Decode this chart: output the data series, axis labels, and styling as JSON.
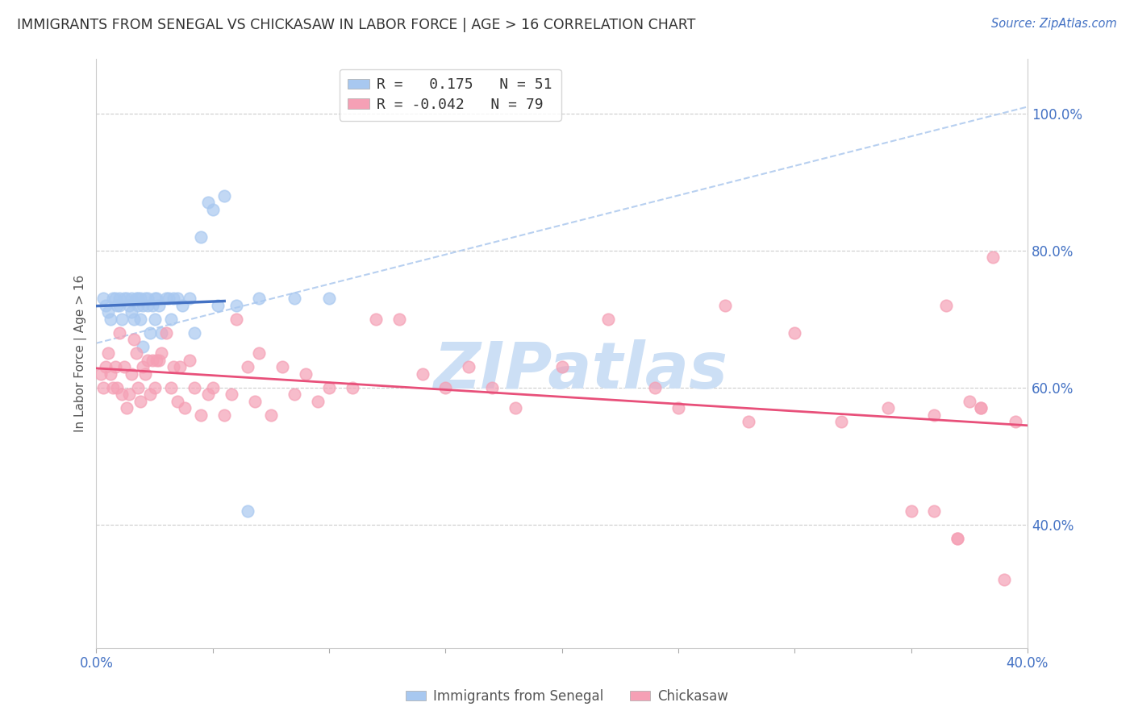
{
  "title": "IMMIGRANTS FROM SENEGAL VS CHICKASAW IN LABOR FORCE | AGE > 16 CORRELATION CHART",
  "source": "Source: ZipAtlas.com",
  "ylabel": "In Labor Force | Age > 16",
  "xlim": [
    0.0,
    0.4
  ],
  "ylim": [
    0.22,
    1.08
  ],
  "right_yticks": [
    1.0,
    0.8,
    0.6,
    0.4
  ],
  "right_ytick_labels": [
    "100.0%",
    "80.0%",
    "60.0%",
    "40.0%"
  ],
  "xtick_positions": [
    0.0,
    0.05,
    0.1,
    0.15,
    0.2,
    0.25,
    0.3,
    0.35,
    0.4
  ],
  "xtick_labels_visible": {
    "0.0": "0.0%",
    "0.40": "40.0%"
  },
  "R_senegal": 0.175,
  "N_senegal": 51,
  "R_chickasaw": -0.042,
  "N_chickasaw": 79,
  "senegal_color": "#a8c8f0",
  "chickasaw_color": "#f5a0b5",
  "senegal_line_color": "#4472c4",
  "chickasaw_line_color": "#e8507a",
  "dashed_line_color": "#b8d0f0",
  "watermark": "ZIPatlas",
  "watermark_color": "#ccdff5",
  "senegal_x": [
    0.003,
    0.004,
    0.005,
    0.006,
    0.007,
    0.008,
    0.009,
    0.01,
    0.01,
    0.011,
    0.012,
    0.013,
    0.014,
    0.015,
    0.015,
    0.016,
    0.017,
    0.018,
    0.018,
    0.019,
    0.019,
    0.02,
    0.02,
    0.021,
    0.022,
    0.022,
    0.023,
    0.024,
    0.025,
    0.025,
    0.026,
    0.027,
    0.028,
    0.03,
    0.031,
    0.032,
    0.033,
    0.035,
    0.037,
    0.04,
    0.042,
    0.045,
    0.048,
    0.05,
    0.052,
    0.055,
    0.06,
    0.065,
    0.07,
    0.085,
    0.1
  ],
  "senegal_y": [
    0.73,
    0.72,
    0.71,
    0.7,
    0.73,
    0.73,
    0.72,
    0.72,
    0.73,
    0.7,
    0.73,
    0.73,
    0.72,
    0.71,
    0.73,
    0.7,
    0.73,
    0.72,
    0.73,
    0.7,
    0.73,
    0.72,
    0.66,
    0.73,
    0.72,
    0.73,
    0.68,
    0.72,
    0.73,
    0.7,
    0.73,
    0.72,
    0.68,
    0.73,
    0.73,
    0.7,
    0.73,
    0.73,
    0.72,
    0.73,
    0.68,
    0.82,
    0.87,
    0.86,
    0.72,
    0.88,
    0.72,
    0.42,
    0.73,
    0.73,
    0.73
  ],
  "chickasaw_x": [
    0.002,
    0.003,
    0.004,
    0.005,
    0.006,
    0.007,
    0.008,
    0.009,
    0.01,
    0.011,
    0.012,
    0.013,
    0.014,
    0.015,
    0.016,
    0.017,
    0.018,
    0.019,
    0.02,
    0.021,
    0.022,
    0.023,
    0.024,
    0.025,
    0.026,
    0.027,
    0.028,
    0.03,
    0.032,
    0.033,
    0.035,
    0.036,
    0.038,
    0.04,
    0.042,
    0.045,
    0.048,
    0.05,
    0.055,
    0.058,
    0.06,
    0.065,
    0.068,
    0.07,
    0.075,
    0.08,
    0.085,
    0.09,
    0.095,
    0.1,
    0.11,
    0.12,
    0.13,
    0.14,
    0.15,
    0.16,
    0.17,
    0.18,
    0.2,
    0.22,
    0.24,
    0.25,
    0.27,
    0.28,
    0.3,
    0.32,
    0.34,
    0.35,
    0.36,
    0.37,
    0.38,
    0.39,
    0.36,
    0.37,
    0.38,
    0.365,
    0.375,
    0.385,
    0.395
  ],
  "chickasaw_y": [
    0.62,
    0.6,
    0.63,
    0.65,
    0.62,
    0.6,
    0.63,
    0.6,
    0.68,
    0.59,
    0.63,
    0.57,
    0.59,
    0.62,
    0.67,
    0.65,
    0.6,
    0.58,
    0.63,
    0.62,
    0.64,
    0.59,
    0.64,
    0.6,
    0.64,
    0.64,
    0.65,
    0.68,
    0.6,
    0.63,
    0.58,
    0.63,
    0.57,
    0.64,
    0.6,
    0.56,
    0.59,
    0.6,
    0.56,
    0.59,
    0.7,
    0.63,
    0.58,
    0.65,
    0.56,
    0.63,
    0.59,
    0.62,
    0.58,
    0.6,
    0.6,
    0.7,
    0.7,
    0.62,
    0.6,
    0.63,
    0.6,
    0.57,
    0.63,
    0.7,
    0.6,
    0.57,
    0.72,
    0.55,
    0.68,
    0.55,
    0.57,
    0.42,
    0.56,
    0.38,
    0.57,
    0.32,
    0.42,
    0.38,
    0.57,
    0.72,
    0.58,
    0.79,
    0.55
  ]
}
